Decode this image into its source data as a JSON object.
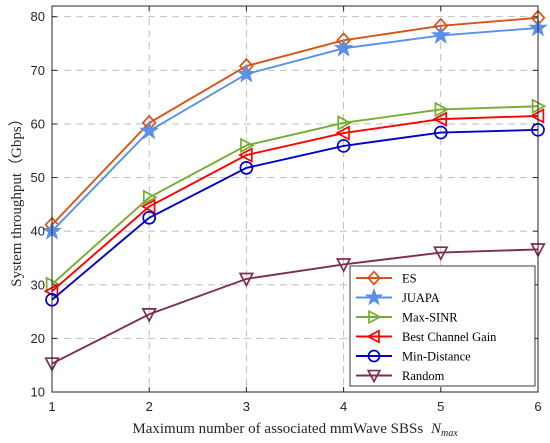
{
  "chart_data": {
    "type": "line",
    "xlabel": "Maximum number of associated mmWave SBSs",
    "xlabel_symbol": "N",
    "xlabel_subscript": "max",
    "ylabel": "System throughput（Gbps）",
    "x": [
      1,
      2,
      3,
      4,
      5,
      6
    ],
    "xlim": [
      1,
      6
    ],
    "ylim": [
      10,
      82
    ],
    "yticks": [
      10,
      20,
      30,
      40,
      50,
      60,
      70,
      80
    ],
    "xticks": [
      1,
      2,
      3,
      4,
      5,
      6
    ],
    "grid": true,
    "legend_position": "bottom-right",
    "series": [
      {
        "name": "ES",
        "color": "#D95319",
        "marker": "diamond",
        "values": [
          41.2,
          60.2,
          70.8,
          75.6,
          78.3,
          79.8
        ]
      },
      {
        "name": "JUAPA",
        "color": "#5B8FE8",
        "marker": "star",
        "values": [
          40.0,
          58.7,
          69.3,
          74.1,
          76.5,
          77.9
        ]
      },
      {
        "name": "Max-SINR",
        "color": "#77AC30",
        "marker": "triangle-right",
        "values": [
          30.1,
          46.3,
          56.0,
          60.2,
          62.7,
          63.3
        ]
      },
      {
        "name": "Best Channel Gain",
        "color": "#FF0000",
        "marker": "triangle-left",
        "values": [
          28.8,
          44.6,
          54.2,
          58.3,
          60.9,
          61.5
        ]
      },
      {
        "name": "Min-Distance",
        "color": "#0000CC",
        "marker": "circle",
        "values": [
          27.2,
          42.5,
          51.8,
          55.9,
          58.4,
          58.9
        ]
      },
      {
        "name": "Random",
        "color": "#7E2F4E",
        "marker": "triangle-down",
        "values": [
          15.3,
          24.5,
          31.1,
          33.8,
          36.0,
          36.6
        ]
      }
    ]
  }
}
